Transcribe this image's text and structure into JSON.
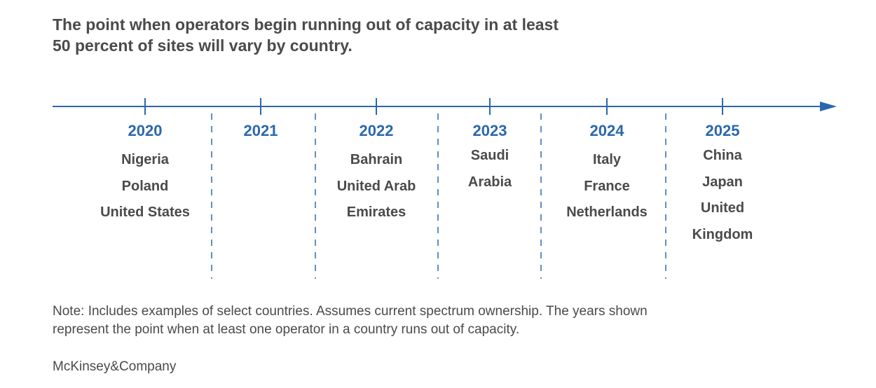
{
  "title": {
    "line1": "The point when operators begin running out of capacity in at least",
    "line2": "50 percent of sites will vary by country."
  },
  "timeline": [
    {
      "year": "2020",
      "countries": [
        "Nigeria",
        "Poland",
        "United States"
      ]
    },
    {
      "year": "2021",
      "countries": []
    },
    {
      "year": "2022",
      "countries": [
        "Bahrain",
        "United Arab",
        "Emirates"
      ]
    },
    {
      "year": "2023",
      "countries": [
        "Saudi",
        "Arabia"
      ]
    },
    {
      "year": "2024",
      "countries": [
        "Italy",
        "France",
        "Netherlands"
      ]
    },
    {
      "year": "2025",
      "countries": [
        "China",
        "Japan",
        "United",
        "Kingdom"
      ]
    }
  ],
  "note": {
    "line1": "Note: Includes examples of select countries. Assumes current spectrum ownership. The years shown",
    "line2": "represent the point when at least one operator in a country runs out of capacity."
  },
  "logo": "McKinsey&Company",
  "colors": {
    "accent": "#2a68ad",
    "text": "#4a4a4a"
  }
}
